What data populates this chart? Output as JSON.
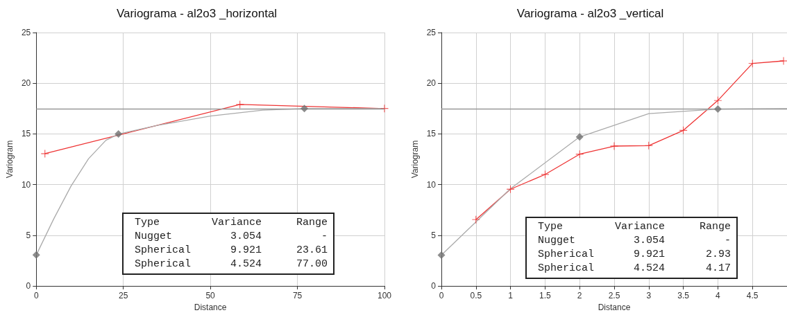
{
  "chart_data": [
    {
      "type": "line",
      "title": "Variograma - al2o3 _horizontal",
      "xlabel": "Distance",
      "ylabel": "Variogram",
      "xlim": [
        0,
        100
      ],
      "xticks": [
        0,
        25,
        50,
        75,
        100
      ],
      "ylim": [
        0,
        25
      ],
      "yticks": [
        0,
        5,
        10,
        15,
        20,
        25
      ],
      "grid": true,
      "legend": false,
      "line_style": "solid",
      "series": [
        {
          "color": "#ee3333",
          "marker": "cross",
          "x": [
            2.5,
            58.5,
            100
          ],
          "values": [
            13.05,
            17.9,
            17.5
          ]
        },
        {
          "color": "#aaaaaa",
          "marker": "none",
          "x": [
            0,
            5,
            10,
            15,
            20,
            23.61,
            35,
            50,
            65,
            77,
            100
          ],
          "values": [
            3.05,
            6.6,
            9.86,
            12.54,
            14.37,
            14.99,
            15.85,
            16.76,
            17.34,
            17.5,
            17.5
          ]
        },
        {
          "type": "scatter",
          "color": "#707070",
          "marker": "diamond",
          "x": [
            0,
            23.61,
            77
          ],
          "values": [
            3.05,
            14.99,
            17.5
          ]
        }
      ],
      "ref_lines": [
        {
          "axis": "y",
          "value": 17.5,
          "color": "#999999"
        }
      ],
      "annotations": [
        "Type",
        "Variance",
        "Range",
        "Nugget",
        "3.054",
        "-",
        "Spherical",
        "9.921",
        "23.61",
        "Spherical",
        "4.524",
        "77.00"
      ]
    },
    {
      "type": "line",
      "title": "Variograma - al2o3 _vertical",
      "xlabel": "Distance",
      "ylabel": "Variogram",
      "xlim": [
        0,
        5
      ],
      "xticks": [
        0,
        0.5,
        1,
        1.5,
        2,
        2.5,
        3,
        3.5,
        4,
        4.5
      ],
      "ylim": [
        0,
        25
      ],
      "yticks": [
        0,
        5,
        10,
        15,
        20,
        25
      ],
      "grid": true,
      "legend": false,
      "line_style": "solid",
      "series": [
        {
          "color": "#ee3333",
          "marker": "cross",
          "x": [
            0.5,
            1,
            1.5,
            2,
            2.5,
            3,
            3.5,
            4,
            4.5,
            4.95
          ],
          "values": [
            6.55,
            9.55,
            11.0,
            13.0,
            13.8,
            13.85,
            15.35,
            18.3,
            21.95,
            22.2
          ]
        },
        {
          "color": "#aaaaaa",
          "marker": "none",
          "x": [
            0,
            1,
            2,
            3,
            4,
            5
          ],
          "values": [
            3.05,
            9.6,
            14.7,
            17.0,
            17.45,
            17.5
          ]
        },
        {
          "type": "scatter",
          "color": "#707070",
          "marker": "diamond",
          "x": [
            0,
            2,
            4
          ],
          "values": [
            3.05,
            14.7,
            17.45
          ]
        }
      ],
      "ref_lines": [
        {
          "axis": "y",
          "value": 17.5,
          "color": "#999999"
        }
      ],
      "annotations": [
        "Type",
        "Variance",
        "Range",
        "Nugget",
        "3.054",
        "-",
        "Spherical",
        "9.921",
        "2.93",
        "Spherical",
        "4.524",
        "4.17"
      ]
    }
  ]
}
